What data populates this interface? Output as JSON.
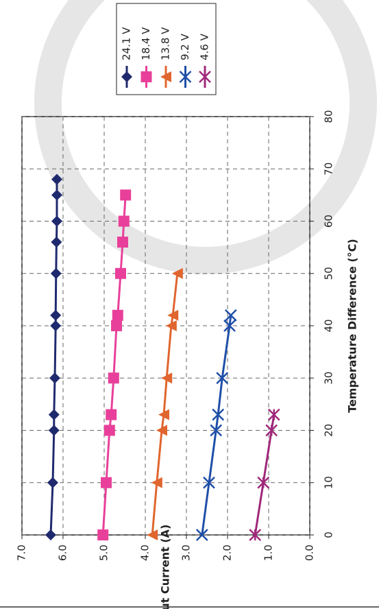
{
  "chart_data": {
    "type": "line",
    "x_label": "Temperature Difference (°C)",
    "y_label": "Input Current (A)",
    "xlim": [
      0,
      80
    ],
    "xticks": [
      0,
      10,
      20,
      30,
      40,
      50,
      60,
      70,
      80
    ],
    "ylim": [
      0,
      7
    ],
    "yticks": [
      {
        "value": 0,
        "label": "0.0"
      },
      {
        "value": 1,
        "label": "1.0"
      },
      {
        "value": 2,
        "label": "2.0"
      },
      {
        "value": 3,
        "label": "3.0"
      },
      {
        "value": 4,
        "label": "4.0"
      },
      {
        "value": 5,
        "label": "5.0"
      },
      {
        "value": 6,
        "label": "6.0"
      },
      {
        "value": 7,
        "label": "7.0"
      }
    ],
    "grid": true,
    "legend": "top-right",
    "series": [
      {
        "name": "24.1 V",
        "color": "#1f2a6e",
        "marker": "diamond",
        "x": [
          0,
          10,
          20,
          23,
          30,
          40,
          42,
          50,
          56,
          60,
          65,
          68
        ],
        "values": [
          6.3,
          6.25,
          6.22,
          6.22,
          6.2,
          6.18,
          6.18,
          6.17,
          6.16,
          6.15,
          6.15,
          6.15
        ]
      },
      {
        "name": "18.4 V",
        "color": "#e8409a",
        "marker": "square",
        "x": [
          0,
          10,
          20,
          23,
          30,
          40,
          42,
          50,
          56,
          60,
          65
        ],
        "values": [
          5.03,
          4.95,
          4.87,
          4.83,
          4.77,
          4.7,
          4.67,
          4.6,
          4.55,
          4.52,
          4.48
        ]
      },
      {
        "name": "13.8 V",
        "color": "#e0652e",
        "marker": "triangle",
        "x": [
          0,
          10,
          20,
          23,
          30,
          40,
          42,
          50
        ],
        "values": [
          3.83,
          3.72,
          3.6,
          3.55,
          3.48,
          3.37,
          3.33,
          3.22
        ]
      },
      {
        "name": "9.2 V",
        "color": "#1f4fa8",
        "marker": "x",
        "x": [
          0,
          10,
          20,
          23,
          30,
          40,
          42
        ],
        "values": [
          2.62,
          2.45,
          2.28,
          2.23,
          2.13,
          1.95,
          1.92
        ]
      },
      {
        "name": "4.6 V",
        "color": "#a0287a",
        "marker": "star",
        "x": [
          0,
          10,
          20,
          23
        ],
        "values": [
          1.33,
          1.13,
          0.93,
          0.87
        ]
      }
    ]
  }
}
